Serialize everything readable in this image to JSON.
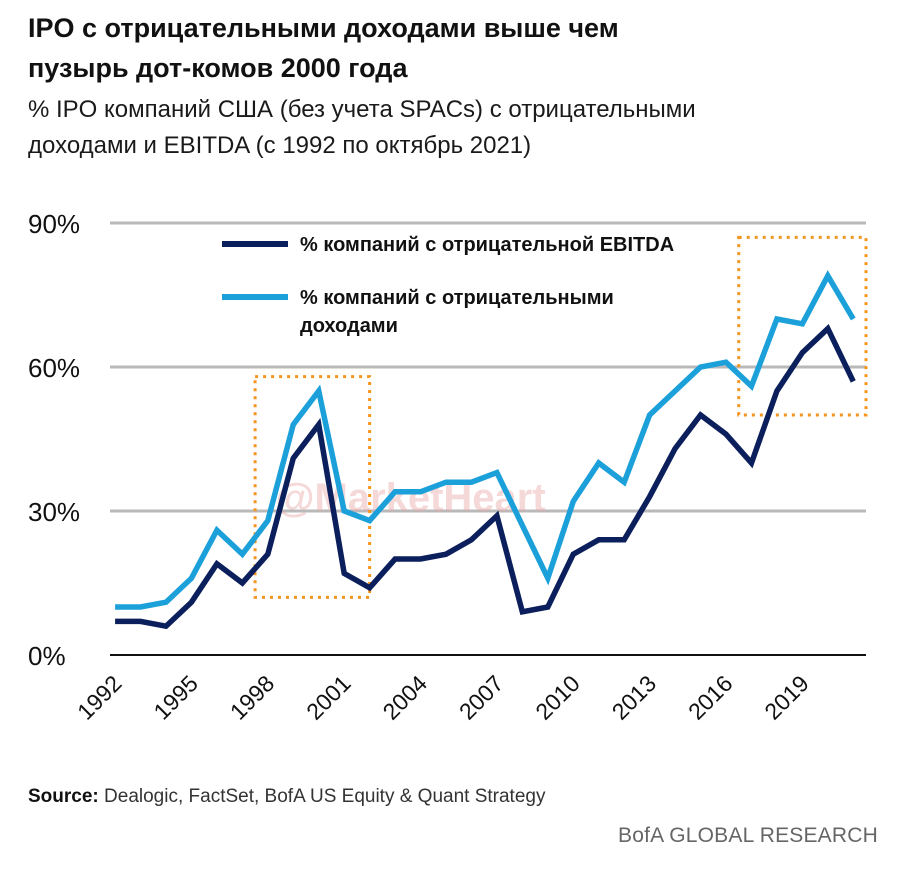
{
  "header": {
    "title_line1": "IPO с отрицательными доходами выше чем",
    "title_line2": "пузырь дот-комов 2000 года",
    "subtitle_line1": "% IPO компаний США (без учета SPACs) с отрицательными",
    "subtitle_line2": "доходами и EBITDA (с 1992 по октябрь 2021)"
  },
  "chart_data": {
    "type": "line",
    "title": "IPO с отрицательными доходами выше чем пузырь дот-комов 2000 года",
    "x": [
      1992,
      1993,
      1994,
      1995,
      1996,
      1997,
      1998,
      1999,
      2000,
      2001,
      2002,
      2003,
      2004,
      2005,
      2006,
      2007,
      2008,
      2009,
      2010,
      2011,
      2012,
      2013,
      2014,
      2015,
      2016,
      2017,
      2018,
      2019,
      2020,
      2021
    ],
    "series": [
      {
        "name": "% компаний с отрицательной EBITDA",
        "color": "#0b1f5c",
        "values": [
          7,
          7,
          6,
          11,
          19,
          15,
          21,
          41,
          48,
          17,
          14,
          20,
          20,
          21,
          24,
          29,
          9,
          10,
          21,
          24,
          24,
          33,
          43,
          50,
          46,
          40,
          55,
          63,
          68,
          57
        ]
      },
      {
        "name": "% компаний с отрицательными доходами",
        "legend_lines": [
          "% компаний с отрицательными",
          "доходами"
        ],
        "color": "#1ca0da",
        "values": [
          10,
          10,
          11,
          16,
          26,
          21,
          28,
          48,
          55,
          30,
          28,
          34,
          34,
          36,
          36,
          38,
          27,
          16,
          32,
          40,
          36,
          50,
          55,
          60,
          61,
          56,
          70,
          69,
          79,
          70
        ]
      }
    ],
    "y_ticks": [
      "0%",
      "30%",
      "60%",
      "90%"
    ],
    "x_ticks": [
      "1992",
      "1995",
      "1998",
      "2001",
      "2004",
      "2007",
      "2010",
      "2013",
      "2016",
      "2019"
    ],
    "ylim": [
      0,
      90
    ],
    "grid": true,
    "highlight_regions": [
      {
        "x_start": 1997.5,
        "x_end": 2002,
        "y_start": 12,
        "y_end": 58,
        "color": "#f5941e"
      },
      {
        "x_start": 2016.5,
        "x_end": 2021.5,
        "y_start": 50,
        "y_end": 87,
        "color": "#f5941e"
      }
    ],
    "watermark": "@MarketHeart"
  },
  "footer": {
    "source_label": "Source:",
    "source_text": " Dealogic, FactSet, BofA US Equity & Quant Strategy",
    "brand": "BofA GLOBAL RESEARCH"
  }
}
